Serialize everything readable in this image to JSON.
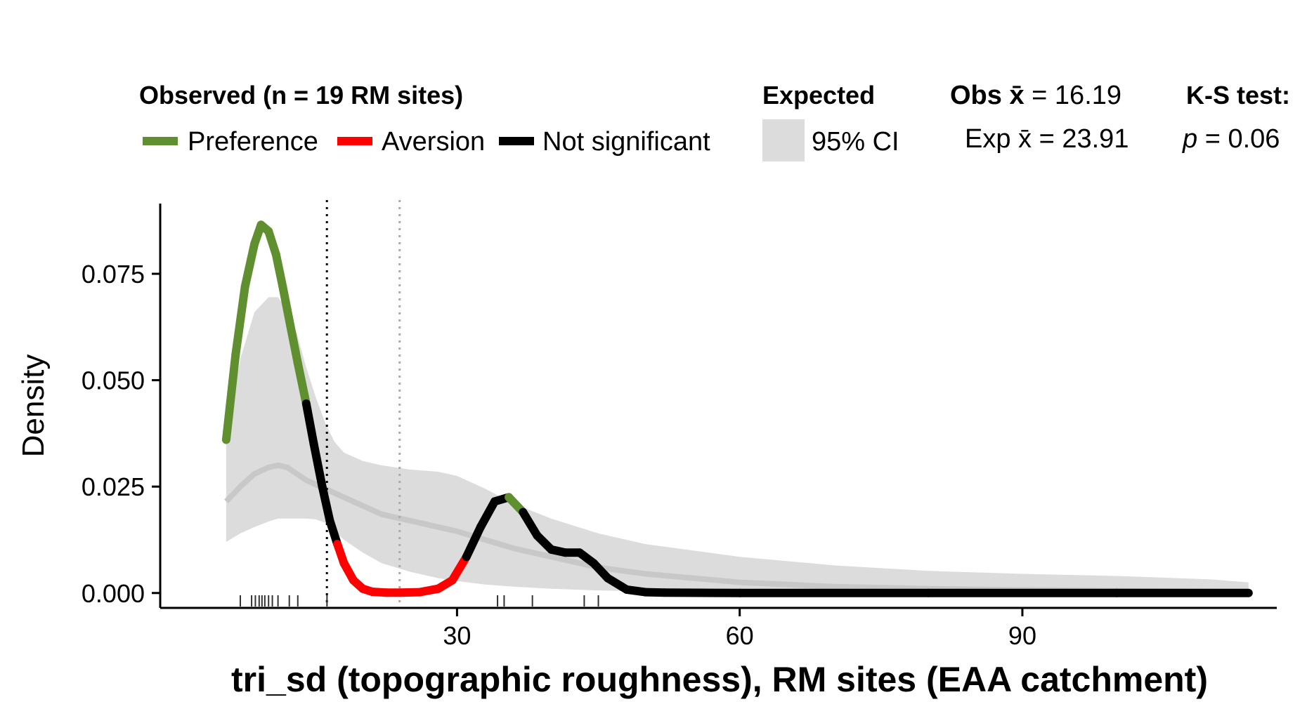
{
  "legend": {
    "observed_title": "Observed (n = 19 RM sites)",
    "items": [
      {
        "label": "Preference",
        "color": "#5f8f2e"
      },
      {
        "label": "Aversion",
        "color": "#ff0000"
      },
      {
        "label": "Not significant",
        "color": "#000000"
      }
    ],
    "expected_title": "Expected",
    "expected_item": "95% CI",
    "ci_color": "#dcdcdc",
    "obs_mean_label": "Obs x̄",
    "obs_mean_value": "= 16.19",
    "exp_mean_label": "Exp x̄",
    "exp_mean_value": "= 23.91",
    "ks_title": "K-S test:",
    "ks_p_label": "p",
    "ks_p_value": "= 0.06"
  },
  "chart_data": {
    "type": "line",
    "xlabel": "tri_sd (topographic roughness), RM sites (EAA catchment)",
    "ylabel": "Density",
    "xlim": [
      -1.5,
      117
    ],
    "ylim": [
      -0.0035,
      0.0915
    ],
    "x_ticks": [
      30,
      60,
      90
    ],
    "y_ticks": [
      0.0,
      0.025,
      0.05,
      0.075
    ],
    "y_tick_labels": [
      "0.000",
      "0.025",
      "0.050",
      "0.075"
    ],
    "obs_mean": 16.19,
    "exp_mean": 23.91,
    "series": [
      {
        "name": "Observed",
        "x": [
          5.5,
          6.5,
          7.5,
          8.5,
          9.2,
          10.0,
          10.8,
          11.5,
          12.3,
          13.1,
          14.0,
          14.8,
          15.7,
          16.5,
          17.3,
          18.0,
          19.0,
          20.0,
          21.0,
          22.5,
          24.0,
          26.0,
          28.0,
          29.5,
          31.0,
          32.5,
          34.0,
          35.5,
          37.0,
          38.5,
          40.0,
          41.5,
          43.0,
          44.5,
          46.0,
          48.0,
          50.0,
          52.0,
          60.0,
          80.0,
          100.0,
          114.0
        ],
        "y": [
          0.036,
          0.056,
          0.072,
          0.082,
          0.0865,
          0.085,
          0.0795,
          0.072,
          0.063,
          0.054,
          0.0445,
          0.035,
          0.025,
          0.017,
          0.0115,
          0.007,
          0.003,
          0.001,
          0.0003,
          0.0001,
          0.0001,
          0.0002,
          0.001,
          0.003,
          0.0085,
          0.0155,
          0.0215,
          0.0225,
          0.019,
          0.0135,
          0.0102,
          0.0095,
          0.0095,
          0.007,
          0.0035,
          0.0008,
          0.0002,
          0.0001,
          0.0,
          0.0,
          0.0,
          0.0
        ],
        "significance": [
          "pref",
          "pref",
          "pref",
          "pref",
          "pref",
          "pref",
          "pref",
          "pref",
          "pref",
          "pref",
          "ns",
          "ns",
          "ns",
          "ns",
          "avers",
          "avers",
          "avers",
          "avers",
          "avers",
          "avers",
          "avers",
          "avers",
          "avers",
          "avers",
          "ns",
          "ns",
          "ns",
          "pref",
          "ns",
          "ns",
          "ns",
          "ns",
          "ns",
          "ns",
          "ns",
          "ns",
          "ns",
          "ns",
          "ns",
          "ns",
          "ns",
          "ns"
        ]
      },
      {
        "name": "Expected",
        "x": [
          5.5,
          7.0,
          8.5,
          10.0,
          11.0,
          12.0,
          13.0,
          14.0,
          15.0,
          16.0,
          17.0,
          18.0,
          20.0,
          22.0,
          25.0,
          28.0,
          30.0,
          33.0,
          36.0,
          40.0,
          45.0,
          50.0,
          60.0,
          70.0,
          80.0,
          90.0,
          100.0,
          110.0,
          114.0
        ],
        "y": [
          0.0215,
          0.025,
          0.028,
          0.0295,
          0.03,
          0.0295,
          0.028,
          0.0265,
          0.0255,
          0.0245,
          0.0235,
          0.0225,
          0.0205,
          0.0185,
          0.017,
          0.0155,
          0.0145,
          0.0125,
          0.0105,
          0.0085,
          0.006,
          0.0045,
          0.0025,
          0.0015,
          0.001,
          0.0007,
          0.0005,
          0.0003,
          0.0003
        ],
        "ci_lower": [
          0.012,
          0.014,
          0.0155,
          0.0168,
          0.0175,
          0.0175,
          0.0175,
          0.0175,
          0.0173,
          0.0165,
          0.0145,
          0.0125,
          0.0095,
          0.007,
          0.005,
          0.0035,
          0.0028,
          0.002,
          0.0015,
          0.001,
          0.0006,
          0.0004,
          0.0002,
          0.0001,
          0.0,
          0.0,
          0.0,
          0.0,
          0.0
        ],
        "ci_upper": [
          0.036,
          0.055,
          0.066,
          0.0695,
          0.0695,
          0.0665,
          0.061,
          0.053,
          0.046,
          0.04,
          0.0355,
          0.033,
          0.031,
          0.03,
          0.029,
          0.0285,
          0.0275,
          0.0245,
          0.021,
          0.0175,
          0.014,
          0.0115,
          0.0085,
          0.0065,
          0.0052,
          0.0045,
          0.004,
          0.0032,
          0.0025
        ]
      }
    ],
    "rug": [
      7.0,
      8.2,
      8.6,
      9.0,
      9.3,
      9.6,
      10.0,
      10.4,
      11.0,
      12.2,
      13.1,
      16.2,
      34.3,
      35.0,
      38.0,
      43.5,
      45.0
    ]
  }
}
